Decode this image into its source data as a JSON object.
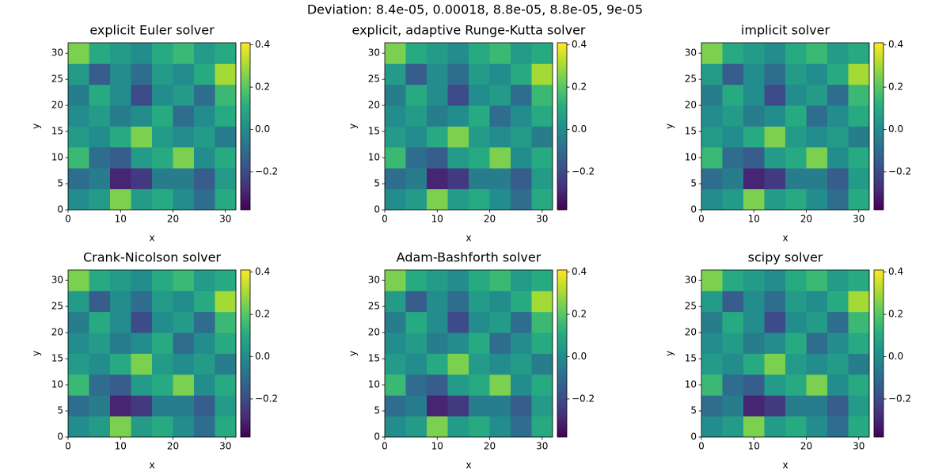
{
  "title": "Deviation: 8.4e-05, 0.00018, 8.8e-05, 8.8e-05, 9e-05",
  "chart_data": [
    {
      "type": "heatmap",
      "title": "explicit Euler solver",
      "xlabel": "x",
      "ylabel": "y",
      "colormap": "viridis",
      "x": [
        0,
        4,
        8,
        12,
        16,
        20,
        24,
        28,
        32
      ],
      "y": [
        0,
        4,
        8,
        12,
        16,
        20,
        24,
        28,
        32
      ],
      "values": [
        [
          0.0,
          0.05,
          0.25,
          0.05,
          0.1,
          0.0,
          -0.1,
          0.1
        ],
        [
          -0.1,
          -0.05,
          -0.3,
          -0.25,
          -0.05,
          -0.05,
          -0.15,
          0.05
        ],
        [
          0.15,
          -0.1,
          -0.15,
          0.05,
          0.1,
          0.25,
          0.0,
          0.1
        ],
        [
          0.05,
          0.0,
          0.1,
          0.25,
          0.05,
          0.0,
          0.05,
          -0.05
        ],
        [
          0.0,
          0.05,
          -0.05,
          0.0,
          0.1,
          -0.1,
          0.0,
          0.1
        ],
        [
          -0.05,
          0.1,
          0.0,
          -0.2,
          0.0,
          0.05,
          -0.1,
          0.15
        ],
        [
          0.05,
          -0.15,
          0.0,
          -0.1,
          0.05,
          0.0,
          0.1,
          0.3
        ],
        [
          0.25,
          0.1,
          0.05,
          0.0,
          0.1,
          0.15,
          0.05,
          0.1
        ]
      ],
      "xlim": [
        0,
        32
      ],
      "ylim": [
        0,
        32
      ],
      "xticks": [
        0,
        10,
        20,
        30
      ],
      "yticks": [
        0,
        5,
        10,
        15,
        20,
        25,
        30
      ],
      "clim": [
        -0.38,
        0.41
      ],
      "cticks": [
        {
          "value": -0.2,
          "label": "−0.2"
        },
        {
          "value": 0,
          "label": "0.0"
        },
        0.2,
        0.4
      ]
    },
    {
      "type": "heatmap",
      "title": "explicit, adaptive Runge-Kutta solver",
      "xlabel": "x",
      "ylabel": "y",
      "colormap": "viridis",
      "x": [
        0,
        4,
        8,
        12,
        16,
        20,
        24,
        28,
        32
      ],
      "y": [
        0,
        4,
        8,
        12,
        16,
        20,
        24,
        28,
        32
      ],
      "values": [
        [
          0.0,
          0.05,
          0.25,
          0.05,
          0.1,
          0.0,
          -0.1,
          0.1
        ],
        [
          -0.1,
          -0.05,
          -0.3,
          -0.25,
          -0.05,
          -0.05,
          -0.15,
          0.05
        ],
        [
          0.15,
          -0.1,
          -0.15,
          0.05,
          0.1,
          0.25,
          0.0,
          0.1
        ],
        [
          0.05,
          0.0,
          0.1,
          0.25,
          0.05,
          0.0,
          0.05,
          -0.05
        ],
        [
          0.0,
          0.05,
          -0.05,
          0.0,
          0.1,
          -0.1,
          0.0,
          0.1
        ],
        [
          -0.05,
          0.1,
          0.0,
          -0.2,
          0.0,
          0.05,
          -0.1,
          0.15
        ],
        [
          0.05,
          -0.15,
          0.0,
          -0.1,
          0.05,
          0.0,
          0.1,
          0.3
        ],
        [
          0.25,
          0.1,
          0.05,
          0.0,
          0.1,
          0.15,
          0.05,
          0.1
        ]
      ],
      "xlim": [
        0,
        32
      ],
      "ylim": [
        0,
        32
      ],
      "xticks": [
        0,
        10,
        20,
        30
      ],
      "yticks": [
        0,
        5,
        10,
        15,
        20,
        25,
        30
      ],
      "clim": [
        -0.38,
        0.41
      ],
      "cticks": [
        {
          "value": -0.2,
          "label": "−0.2"
        },
        {
          "value": 0,
          "label": "0.0"
        },
        0.2,
        0.4
      ]
    },
    {
      "type": "heatmap",
      "title": "implicit solver",
      "xlabel": "x",
      "ylabel": "y",
      "colormap": "viridis",
      "x": [
        0,
        4,
        8,
        12,
        16,
        20,
        24,
        28,
        32
      ],
      "y": [
        0,
        4,
        8,
        12,
        16,
        20,
        24,
        28,
        32
      ],
      "values": [
        [
          0.0,
          0.05,
          0.25,
          0.05,
          0.1,
          0.0,
          -0.1,
          0.1
        ],
        [
          -0.1,
          -0.05,
          -0.3,
          -0.25,
          -0.05,
          -0.05,
          -0.15,
          0.05
        ],
        [
          0.15,
          -0.1,
          -0.15,
          0.05,
          0.1,
          0.25,
          0.0,
          0.1
        ],
        [
          0.05,
          0.0,
          0.1,
          0.25,
          0.05,
          0.0,
          0.05,
          -0.05
        ],
        [
          0.0,
          0.05,
          -0.05,
          0.0,
          0.1,
          -0.1,
          0.0,
          0.1
        ],
        [
          -0.05,
          0.1,
          0.0,
          -0.2,
          0.0,
          0.05,
          -0.1,
          0.15
        ],
        [
          0.05,
          -0.15,
          0.0,
          -0.1,
          0.05,
          0.0,
          0.1,
          0.3
        ],
        [
          0.25,
          0.1,
          0.05,
          0.0,
          0.1,
          0.15,
          0.05,
          0.1
        ]
      ],
      "xlim": [
        0,
        32
      ],
      "ylim": [
        0,
        32
      ],
      "xticks": [
        0,
        10,
        20,
        30
      ],
      "yticks": [
        0,
        5,
        10,
        15,
        20,
        25,
        30
      ],
      "clim": [
        -0.38,
        0.41
      ],
      "cticks": [
        {
          "value": -0.2,
          "label": "−0.2"
        },
        {
          "value": 0,
          "label": "0.0"
        },
        0.2,
        0.4
      ]
    },
    {
      "type": "heatmap",
      "title": "Crank-Nicolson solver",
      "xlabel": "x",
      "ylabel": "y",
      "colormap": "viridis",
      "x": [
        0,
        4,
        8,
        12,
        16,
        20,
        24,
        28,
        32
      ],
      "y": [
        0,
        4,
        8,
        12,
        16,
        20,
        24,
        28,
        32
      ],
      "values": [
        [
          0.0,
          0.05,
          0.25,
          0.05,
          0.1,
          0.0,
          -0.1,
          0.1
        ],
        [
          -0.1,
          -0.05,
          -0.3,
          -0.25,
          -0.05,
          -0.05,
          -0.15,
          0.05
        ],
        [
          0.15,
          -0.1,
          -0.15,
          0.05,
          0.1,
          0.25,
          0.0,
          0.1
        ],
        [
          0.05,
          0.0,
          0.1,
          0.25,
          0.05,
          0.0,
          0.05,
          -0.05
        ],
        [
          0.0,
          0.05,
          -0.05,
          0.0,
          0.1,
          -0.1,
          0.0,
          0.1
        ],
        [
          -0.05,
          0.1,
          0.0,
          -0.2,
          0.0,
          0.05,
          -0.1,
          0.15
        ],
        [
          0.05,
          -0.15,
          0.0,
          -0.1,
          0.05,
          0.0,
          0.1,
          0.3
        ],
        [
          0.25,
          0.1,
          0.05,
          0.0,
          0.1,
          0.15,
          0.05,
          0.1
        ]
      ],
      "xlim": [
        0,
        32
      ],
      "ylim": [
        0,
        32
      ],
      "xticks": [
        0,
        10,
        20,
        30
      ],
      "yticks": [
        0,
        5,
        10,
        15,
        20,
        25,
        30
      ],
      "clim": [
        -0.38,
        0.41
      ],
      "cticks": [
        {
          "value": -0.2,
          "label": "−0.2"
        },
        {
          "value": 0,
          "label": "0.0"
        },
        0.2,
        0.4
      ]
    },
    {
      "type": "heatmap",
      "title": "Adam-Bashforth solver",
      "xlabel": "x",
      "ylabel": "y",
      "colormap": "viridis",
      "x": [
        0,
        4,
        8,
        12,
        16,
        20,
        24,
        28,
        32
      ],
      "y": [
        0,
        4,
        8,
        12,
        16,
        20,
        24,
        28,
        32
      ],
      "values": [
        [
          0.0,
          0.05,
          0.25,
          0.05,
          0.1,
          0.0,
          -0.1,
          0.1
        ],
        [
          -0.1,
          -0.05,
          -0.3,
          -0.25,
          -0.05,
          -0.05,
          -0.15,
          0.05
        ],
        [
          0.15,
          -0.1,
          -0.15,
          0.05,
          0.1,
          0.25,
          0.0,
          0.1
        ],
        [
          0.05,
          0.0,
          0.1,
          0.25,
          0.05,
          0.0,
          0.05,
          -0.05
        ],
        [
          0.0,
          0.05,
          -0.05,
          0.0,
          0.1,
          -0.1,
          0.0,
          0.1
        ],
        [
          -0.05,
          0.1,
          0.0,
          -0.2,
          0.0,
          0.05,
          -0.1,
          0.15
        ],
        [
          0.05,
          -0.15,
          0.0,
          -0.1,
          0.05,
          0.0,
          0.1,
          0.3
        ],
        [
          0.25,
          0.1,
          0.05,
          0.0,
          0.1,
          0.15,
          0.05,
          0.1
        ]
      ],
      "xlim": [
        0,
        32
      ],
      "ylim": [
        0,
        32
      ],
      "xticks": [
        0,
        10,
        20,
        30
      ],
      "yticks": [
        0,
        5,
        10,
        15,
        20,
        25,
        30
      ],
      "clim": [
        -0.38,
        0.41
      ],
      "cticks": [
        {
          "value": -0.2,
          "label": "−0.2"
        },
        {
          "value": 0,
          "label": "0.0"
        },
        0.2,
        0.4
      ]
    },
    {
      "type": "heatmap",
      "title": "scipy solver",
      "xlabel": "x",
      "ylabel": "y",
      "colormap": "viridis",
      "x": [
        0,
        4,
        8,
        12,
        16,
        20,
        24,
        28,
        32
      ],
      "y": [
        0,
        4,
        8,
        12,
        16,
        20,
        24,
        28,
        32
      ],
      "values": [
        [
          0.0,
          0.05,
          0.25,
          0.05,
          0.1,
          0.0,
          -0.1,
          0.1
        ],
        [
          -0.1,
          -0.05,
          -0.3,
          -0.25,
          -0.05,
          -0.05,
          -0.15,
          0.05
        ],
        [
          0.15,
          -0.1,
          -0.15,
          0.05,
          0.1,
          0.25,
          0.0,
          0.1
        ],
        [
          0.05,
          0.0,
          0.1,
          0.25,
          0.05,
          0.0,
          0.05,
          -0.05
        ],
        [
          0.0,
          0.05,
          -0.05,
          0.0,
          0.1,
          -0.1,
          0.0,
          0.1
        ],
        [
          -0.05,
          0.1,
          0.0,
          -0.2,
          0.0,
          0.05,
          -0.1,
          0.15
        ],
        [
          0.05,
          -0.15,
          0.0,
          -0.1,
          0.05,
          0.0,
          0.1,
          0.3
        ],
        [
          0.25,
          0.1,
          0.05,
          0.0,
          0.1,
          0.15,
          0.05,
          0.1
        ]
      ],
      "xlim": [
        0,
        32
      ],
      "ylim": [
        0,
        32
      ],
      "xticks": [
        0,
        10,
        20,
        30
      ],
      "yticks": [
        0,
        5,
        10,
        15,
        20,
        25,
        30
      ],
      "clim": [
        -0.38,
        0.41
      ],
      "cticks": [
        {
          "value": -0.2,
          "label": "−0.2"
        },
        {
          "value": 0,
          "label": "0.0"
        },
        0.2,
        0.4
      ]
    }
  ]
}
